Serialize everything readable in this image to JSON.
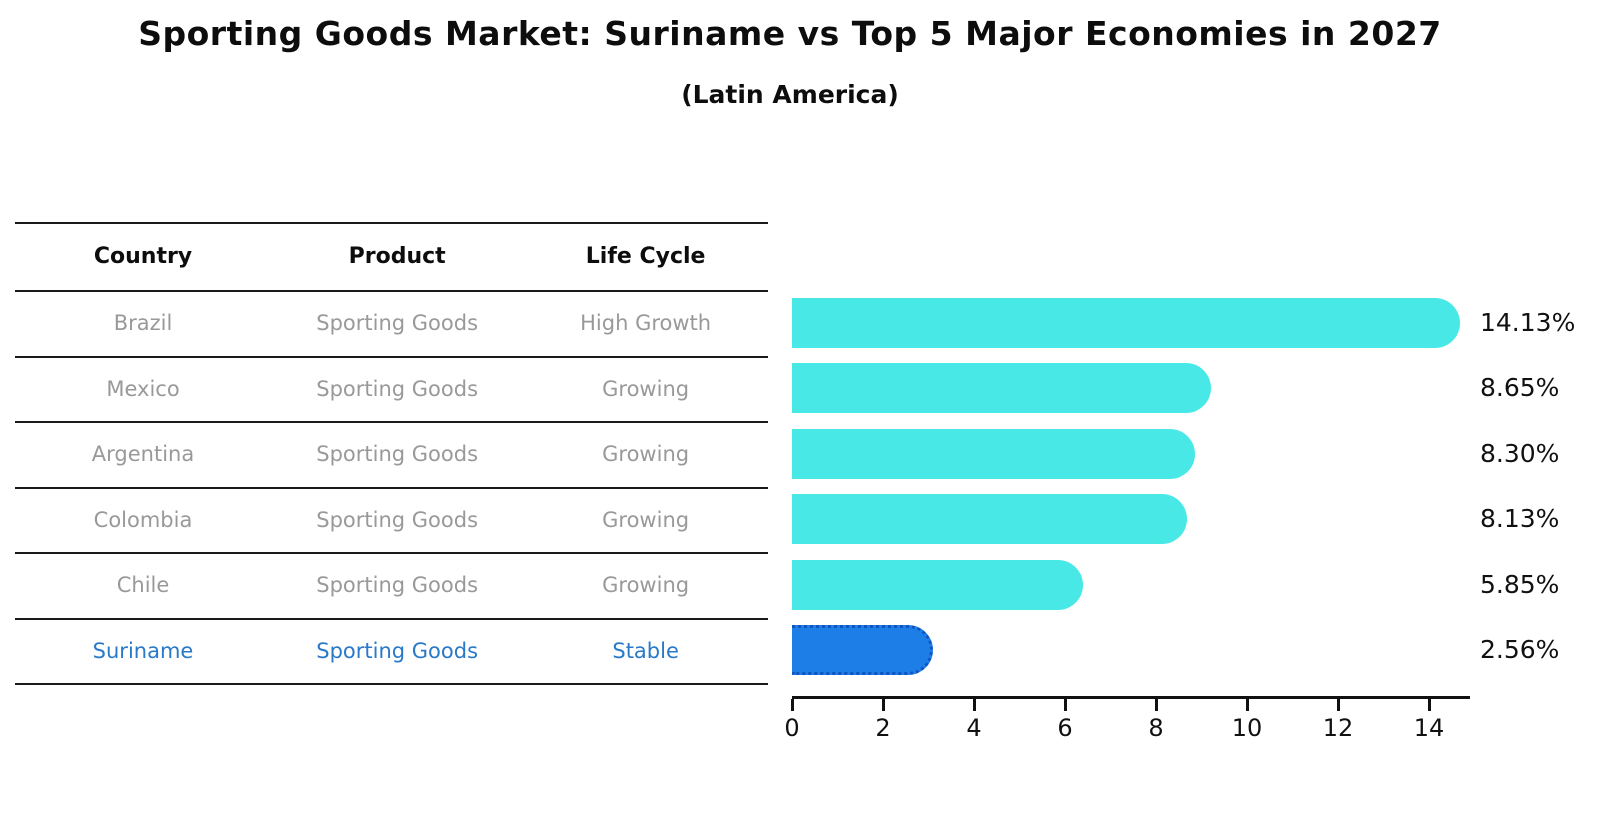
{
  "title": "Sporting Goods Market: Suriname vs Top 5 Major Economies in 2027",
  "subtitle": "(Latin America)",
  "table": {
    "headers": [
      "Country",
      "Product",
      "Life Cycle"
    ]
  },
  "chart_data": {
    "type": "bar",
    "orientation": "horizontal",
    "title": "Sporting Goods Market: Suriname vs Top 5 Major Economies in 2027",
    "subtitle": "(Latin America)",
    "categories": [
      "Brazil",
      "Mexico",
      "Argentina",
      "Colombia",
      "Chile",
      "Suriname"
    ],
    "rows": [
      {
        "country": "Brazil",
        "product": "Sporting Goods",
        "life_cycle": "High Growth",
        "value": 14.13,
        "value_label": "14.13%",
        "highlight": false
      },
      {
        "country": "Mexico",
        "product": "Sporting Goods",
        "life_cycle": "Growing",
        "value": 8.65,
        "value_label": "8.65%",
        "highlight": false
      },
      {
        "country": "Argentina",
        "product": "Sporting Goods",
        "life_cycle": "Growing",
        "value": 8.3,
        "value_label": "8.30%",
        "highlight": false
      },
      {
        "country": "Colombia",
        "product": "Sporting Goods",
        "life_cycle": "Growing",
        "value": 8.13,
        "value_label": "8.13%",
        "highlight": false
      },
      {
        "country": "Chile",
        "product": "Sporting Goods",
        "life_cycle": "Growing",
        "value": 5.85,
        "value_label": "5.85%",
        "highlight": false
      },
      {
        "country": "Suriname",
        "product": "Sporting Goods",
        "life_cycle": "Stable",
        "value": 2.56,
        "value_label": "2.56%",
        "highlight": true
      }
    ],
    "x_ticks": [
      0,
      2,
      4,
      6,
      8,
      10,
      12,
      14
    ],
    "xlim": [
      0,
      14.9
    ],
    "grid": false,
    "legend": false,
    "colors": {
      "bar": "#48e8e6",
      "highlight_bar": "#1e7ee8",
      "highlight_border": "#0f55c0",
      "highlight_text": "#2979c9",
      "row_text": "#999999",
      "axis_text": "#111111"
    }
  }
}
